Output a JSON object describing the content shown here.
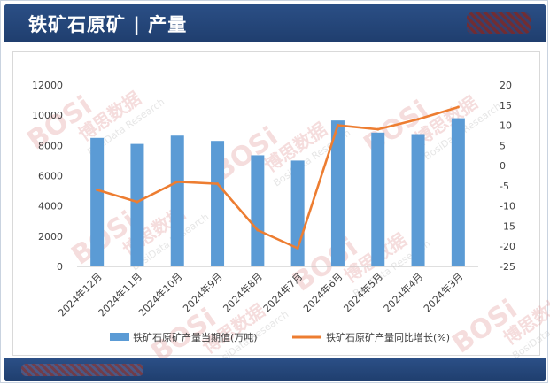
{
  "header": {
    "title": "铁矿石原矿 | 产量"
  },
  "colors": {
    "header_bg": "#1f3e6e",
    "bar": "#5b9bd5",
    "line": "#ed7d31",
    "grid": "#d9d9d9"
  },
  "chart_data": {
    "type": "bar",
    "categories": [
      "2024年12月",
      "2024年11月",
      "2024年10月",
      "2024年9月",
      "2024年8月",
      "2024年7月",
      "2024年6月",
      "2024年5月",
      "2024年4月",
      "2024年3月"
    ],
    "series": [
      {
        "name": "铁矿石原矿产量当期值(万吨)",
        "type": "bar",
        "axis": "left",
        "values": [
          8500,
          8100,
          8650,
          8300,
          7350,
          7000,
          9650,
          8850,
          8750,
          9800
        ]
      },
      {
        "name": "铁矿石原矿产量同比增长(%)",
        "type": "line",
        "axis": "right",
        "values": [
          -6.0,
          -9.0,
          -4.0,
          -4.5,
          -16.0,
          -20.5,
          10.0,
          9.0,
          11.5,
          14.5
        ]
      }
    ],
    "ylim_left": [
      0,
      12000
    ],
    "yticks_left": [
      0,
      2000,
      4000,
      6000,
      8000,
      10000,
      12000
    ],
    "ylim_right": [
      -25,
      20
    ],
    "yticks_right": [
      -25,
      -20,
      -15,
      -10,
      -5,
      0,
      5,
      10,
      15,
      20
    ],
    "grid": false,
    "legend_position": "bottom"
  },
  "watermark": {
    "brand": "BOSi",
    "name_cn": "博思数据",
    "name_en": "BosiData Research"
  }
}
